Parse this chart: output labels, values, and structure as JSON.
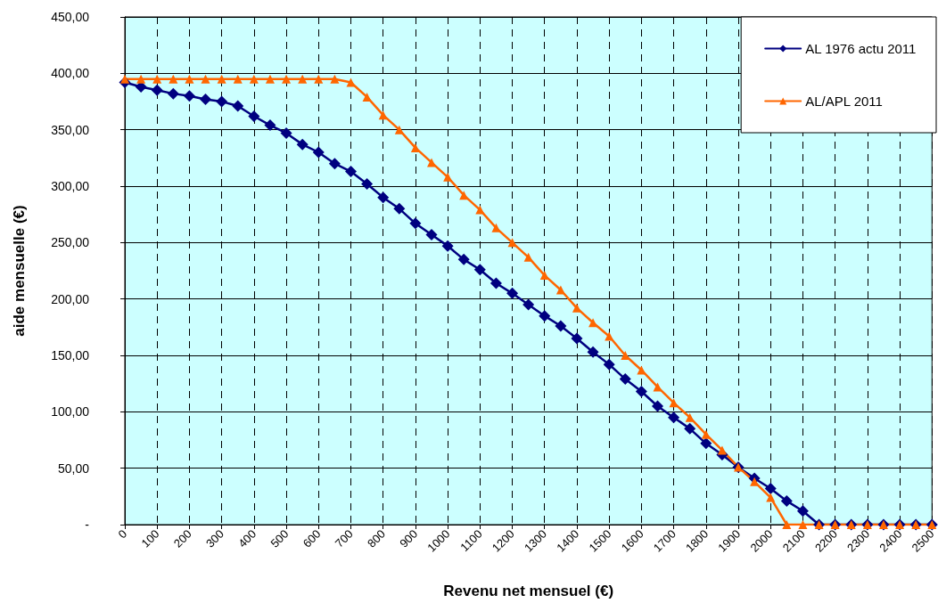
{
  "chart_data": {
    "type": "line",
    "xlabel": "Revenu net mensuel (€)",
    "ylabel": "aide mensuelle (€)",
    "x": [
      0,
      50,
      100,
      150,
      200,
      250,
      300,
      350,
      400,
      450,
      500,
      550,
      600,
      650,
      700,
      750,
      800,
      850,
      900,
      950,
      1000,
      1050,
      1100,
      1150,
      1200,
      1250,
      1300,
      1350,
      1400,
      1450,
      1500,
      1550,
      1600,
      1650,
      1700,
      1750,
      1800,
      1850,
      1900,
      1950,
      2000,
      2050,
      2100,
      2150,
      2200,
      2250,
      2300,
      2350,
      2400,
      2450,
      2500
    ],
    "series": [
      {
        "name": "AL 1976 actu 2011",
        "color": "#000080",
        "marker": "diamond",
        "values": [
          392,
          388,
          385,
          382,
          380,
          377,
          375,
          371,
          362,
          354,
          347,
          337,
          330,
          320,
          313,
          302,
          290,
          280,
          267,
          257,
          247,
          235,
          226,
          214,
          205,
          195,
          185,
          176,
          165,
          153,
          142,
          129,
          118,
          105,
          95,
          85,
          72,
          62,
          51,
          41,
          32,
          21,
          12,
          0,
          0,
          0,
          0,
          0,
          0,
          0,
          0
        ]
      },
      {
        "name": "AL/APL 2011",
        "color": "#ff6600",
        "marker": "triangle",
        "values": [
          395,
          395,
          395,
          395,
          395,
          395,
          395,
          395,
          395,
          395,
          395,
          395,
          395,
          395,
          392,
          379,
          363,
          350,
          334,
          321,
          308,
          292,
          279,
          263,
          250,
          237,
          221,
          208,
          192,
          179,
          167,
          150,
          137,
          122,
          108,
          95,
          80,
          66,
          51,
          38,
          24,
          0,
          0,
          0,
          0,
          0,
          0,
          0,
          0,
          0,
          0
        ]
      }
    ],
    "xlim": [
      0,
      2500
    ],
    "xticks": [
      0,
      100,
      200,
      300,
      400,
      500,
      600,
      700,
      800,
      900,
      1000,
      1100,
      1200,
      1300,
      1400,
      1500,
      1600,
      1700,
      1800,
      1900,
      2000,
      2100,
      2200,
      2300,
      2400,
      2500
    ],
    "ylim": [
      0,
      450
    ],
    "yticks": [
      {
        "value": 0,
        "label": "-"
      },
      {
        "value": 50,
        "label": "50,00"
      },
      {
        "value": 100,
        "label": "100,00"
      },
      {
        "value": 150,
        "label": "150,00"
      },
      {
        "value": 200,
        "label": "200,00"
      },
      {
        "value": 250,
        "label": "250,00"
      },
      {
        "value": 300,
        "label": "300,00"
      },
      {
        "value": 350,
        "label": "350,00"
      },
      {
        "value": 400,
        "label": "400,00"
      },
      {
        "value": 450,
        "label": "450,00"
      }
    ],
    "grid": true,
    "legend": "top right",
    "line_style": "solid"
  }
}
